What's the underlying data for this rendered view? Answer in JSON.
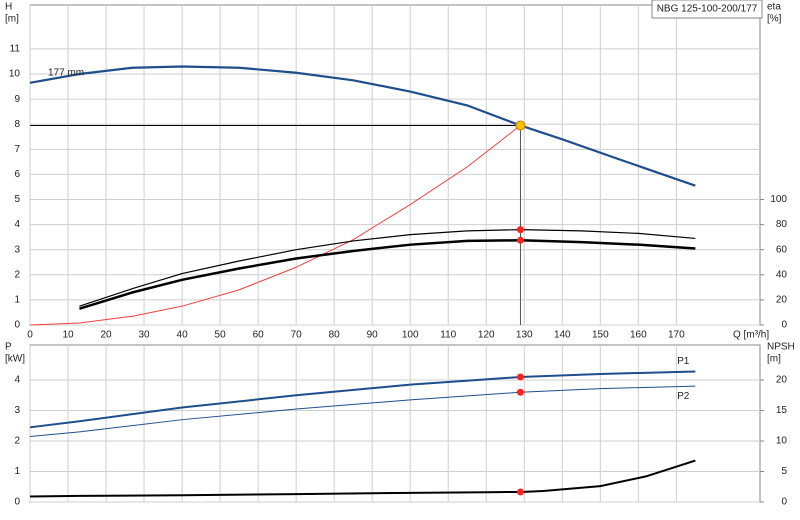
{
  "chart_data": [
    {
      "type": "line",
      "title": "NBG 125-100-200/177",
      "y_label": [
        "H",
        "[m]"
      ],
      "y2_label": [
        "eta",
        "[%]"
      ],
      "x_label": "Q [m³/h]",
      "xlim": [
        0,
        192
      ],
      "xticks": [
        0,
        10,
        20,
        30,
        40,
        50,
        60,
        70,
        80,
        90,
        100,
        110,
        120,
        130,
        140,
        150,
        160,
        170
      ],
      "x_tick_labels": true,
      "ylim": [
        0,
        12.75
      ],
      "yticks": [
        0,
        1,
        2,
        3,
        4,
        5,
        6,
        7,
        8,
        9,
        10,
        11
      ],
      "y2lim": [
        0,
        255
      ],
      "y2ticks": [
        0,
        20,
        40,
        60,
        80,
        100
      ],
      "grid": true,
      "series": [
        {
          "name": "177 mm",
          "color": "#1f4e8c",
          "width": 2.2,
          "x": [
            0,
            13,
            27,
            40,
            55,
            70,
            85,
            100,
            115,
            129,
            140,
            155,
            175
          ],
          "values": [
            9.65,
            10.0,
            10.25,
            10.3,
            10.25,
            10.05,
            9.75,
            9.3,
            8.75,
            7.95,
            7.4,
            6.6,
            5.55
          ]
        },
        {
          "color": "#f04040",
          "width": 1,
          "x": [
            0,
            13,
            27,
            40,
            55,
            70,
            85,
            100,
            115,
            129
          ],
          "values": [
            0,
            0.08,
            0.35,
            0.75,
            1.4,
            2.3,
            3.4,
            4.8,
            6.3,
            7.95
          ]
        },
        {
          "color": "#000000",
          "width": 1.2,
          "axis": "y2",
          "x": [
            13,
            27,
            40,
            55,
            70,
            85,
            100,
            115,
            129,
            145,
            160,
            175
          ],
          "values": [
            15,
            29,
            41,
            51,
            60,
            67,
            72,
            75,
            76,
            75,
            73,
            69
          ]
        },
        {
          "color": "#000000",
          "width": 2.5,
          "axis": "y2",
          "x": [
            13,
            27,
            40,
            55,
            70,
            85,
            100,
            115,
            129,
            145,
            160,
            175
          ],
          "values": [
            13,
            26,
            36,
            45,
            53,
            59,
            64,
            67,
            67.5,
            66,
            64,
            61
          ]
        }
      ],
      "duty_point": {
        "x": 129,
        "y": 7.95,
        "color": "#ffc000"
      },
      "markers": [
        {
          "x": 129,
          "y": 76,
          "axis": "y2",
          "color": "#ff2020"
        },
        {
          "x": 129,
          "y": 67.5,
          "axis": "y2",
          "color": "#ff2020"
        }
      ]
    },
    {
      "type": "line",
      "y_label": [
        "P",
        "[kW]"
      ],
      "y2_label": [
        "NPSH",
        "[m]"
      ],
      "xlim": [
        0,
        192
      ],
      "xticks": [
        0,
        10,
        20,
        30,
        40,
        50,
        60,
        70,
        80,
        90,
        100,
        110,
        120,
        130,
        140,
        150,
        160,
        170
      ],
      "x_tick_labels": false,
      "ylim": [
        0,
        5.15
      ],
      "yticks": [
        0,
        1,
        2,
        3,
        4
      ],
      "y2lim": [
        0,
        25.75
      ],
      "y2ticks": [
        0,
        5,
        10,
        15,
        20
      ],
      "grid": true,
      "series": [
        {
          "name": "P1",
          "color": "#1f4e8c",
          "width": 2,
          "x": [
            0,
            13,
            40,
            70,
            100,
            129,
            150,
            175
          ],
          "values": [
            2.45,
            2.65,
            3.1,
            3.5,
            3.85,
            4.1,
            4.2,
            4.28
          ]
        },
        {
          "name": "P2",
          "color": "#1f4e8c",
          "width": 1,
          "x": [
            0,
            13,
            40,
            70,
            100,
            129,
            150,
            175
          ],
          "values": [
            2.15,
            2.3,
            2.7,
            3.05,
            3.35,
            3.6,
            3.72,
            3.8
          ]
        },
        {
          "color": "#000000",
          "width": 2,
          "axis": "y2",
          "x": [
            0,
            13,
            40,
            70,
            100,
            120,
            129,
            135,
            150,
            162,
            175
          ],
          "values": [
            0.9,
            1,
            1.1,
            1.3,
            1.5,
            1.6,
            1.65,
            1.8,
            2.6,
            4.2,
            6.8
          ]
        }
      ],
      "markers": [
        {
          "x": 129,
          "y": 4.1,
          "color": "#ff2020"
        },
        {
          "x": 129,
          "y": 3.6,
          "color": "#ff2020"
        },
        {
          "x": 129,
          "y": 1.65,
          "axis": "y2",
          "color": "#ff2020"
        }
      ]
    }
  ]
}
